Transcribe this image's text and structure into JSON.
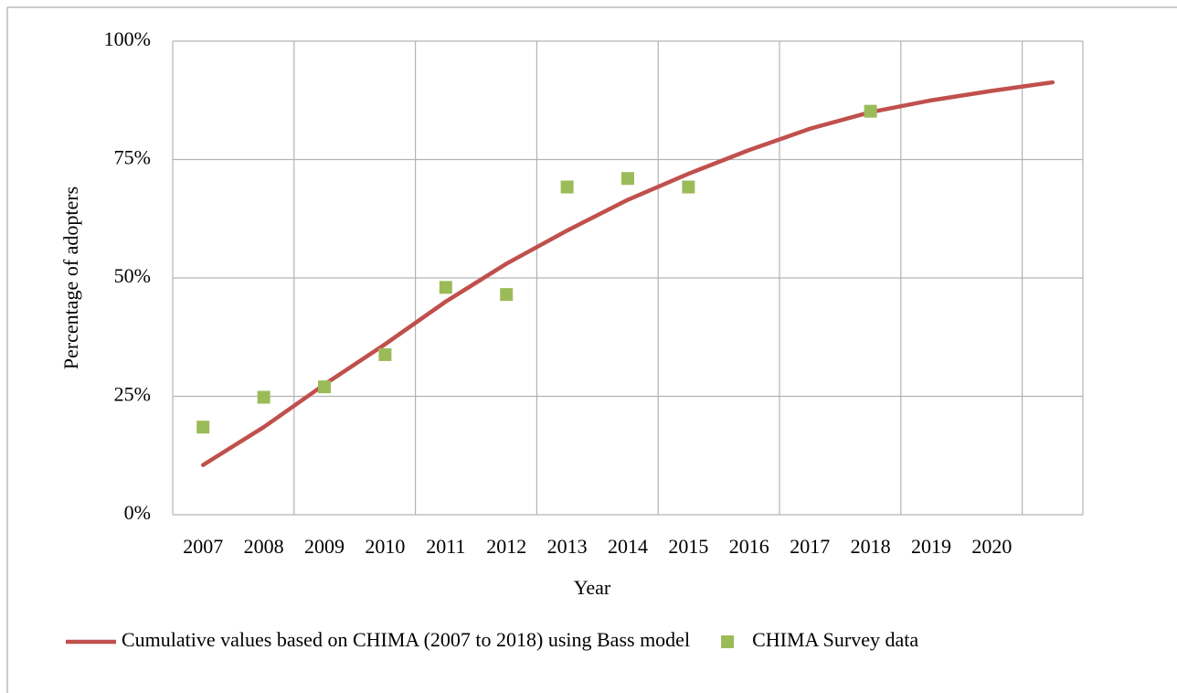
{
  "chart_data": {
    "type": "line",
    "xlabel": "Year",
    "ylabel": "Percentage of adopters",
    "categories": [
      "2007",
      "2008",
      "2009",
      "2010",
      "2011",
      "2012",
      "2013",
      "2014",
      "2015",
      "2016",
      "2017",
      "2018",
      "2019",
      "2020",
      null
    ],
    "series": [
      {
        "name": "Cumulative values based on CHIMA (2007 to 2018) using Bass model",
        "type": "line",
        "color": "#c0504d",
        "values": [
          10.5,
          18.5,
          27.5,
          36,
          45,
          53,
          60,
          66.5,
          72,
          77,
          81.5,
          85,
          87.5,
          89.5,
          91.3
        ]
      },
      {
        "name": "CHIMA Survey data",
        "type": "scatter",
        "color": "#9bbb59",
        "values": [
          18.5,
          24.8,
          27,
          33.8,
          48,
          46.5,
          69.2,
          71,
          69.2,
          null,
          null,
          85.2,
          null,
          null,
          null
        ]
      }
    ],
    "ylim": [
      0,
      100
    ],
    "yticks": [
      {
        "value": 0,
        "label": "0%"
      },
      {
        "value": 25,
        "label": "25%"
      },
      {
        "value": 50,
        "label": "50%"
      },
      {
        "value": 75,
        "label": "75%"
      },
      {
        "value": 100,
        "label": "100%"
      }
    ],
    "grid": true,
    "legend": "bottom"
  }
}
